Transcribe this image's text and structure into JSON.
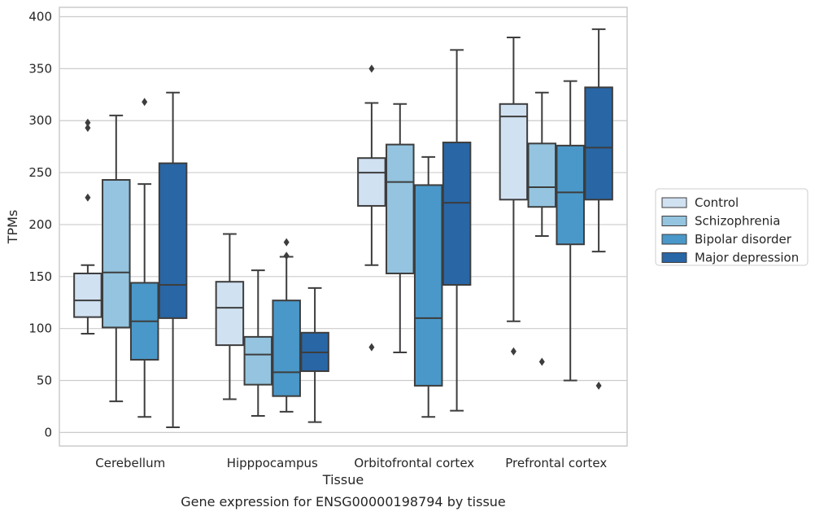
{
  "chart_data": {
    "type": "box",
    "title": "",
    "caption": "Gene expression for ENSG00000198794 by tissue",
    "xlabel": "Tissue",
    "ylabel": "TPMs",
    "ylim": [
      -13,
      409
    ],
    "yticks": [
      0,
      50,
      100,
      150,
      200,
      250,
      300,
      350,
      400
    ],
    "grid": "horizontal",
    "legend_position": "right",
    "categories": [
      "Cerebellum",
      "Hipppocampus",
      "Orbitofrontal cortex",
      "Prefrontal cortex"
    ],
    "series": [
      {
        "name": "Control",
        "color": "#d0e1f2",
        "boxes": [
          {
            "whislo": 95,
            "q1": 111,
            "med": 127,
            "q3": 153,
            "whishi": 161,
            "fliers": [
              226,
              293,
              298
            ]
          },
          {
            "whislo": 32,
            "q1": 84,
            "med": 120,
            "q3": 145,
            "whishi": 191,
            "fliers": []
          },
          {
            "whislo": 161,
            "q1": 218,
            "med": 250,
            "q3": 264,
            "whishi": 317,
            "fliers": [
              82,
              350
            ]
          },
          {
            "whislo": 107,
            "q1": 224,
            "med": 304,
            "q3": 316,
            "whishi": 380,
            "fliers": [
              78
            ]
          }
        ]
      },
      {
        "name": "Schizophrenia",
        "color": "#94c4df",
        "boxes": [
          {
            "whislo": 30,
            "q1": 101,
            "med": 154,
            "q3": 243,
            "whishi": 305,
            "fliers": []
          },
          {
            "whislo": 16,
            "q1": 46,
            "med": 75,
            "q3": 92,
            "whishi": 156,
            "fliers": []
          },
          {
            "whislo": 77,
            "q1": 153,
            "med": 241,
            "q3": 277,
            "whishi": 316,
            "fliers": []
          },
          {
            "whislo": 189,
            "q1": 217,
            "med": 236,
            "q3": 278,
            "whishi": 327,
            "fliers": [
              68
            ]
          }
        ]
      },
      {
        "name": "Bipolar disorder",
        "color": "#4a98c9",
        "boxes": [
          {
            "whislo": 15,
            "q1": 70,
            "med": 107,
            "q3": 144,
            "whishi": 239,
            "fliers": [
              318
            ]
          },
          {
            "whislo": 20,
            "q1": 35,
            "med": 58,
            "q3": 127,
            "whishi": 169,
            "fliers": [
              170,
              183
            ]
          },
          {
            "whislo": 15,
            "q1": 45,
            "med": 110,
            "q3": 238,
            "whishi": 265,
            "fliers": []
          },
          {
            "whislo": 50,
            "q1": 181,
            "med": 231,
            "q3": 276,
            "whishi": 338,
            "fliers": []
          }
        ]
      },
      {
        "name": "Major depression",
        "color": "#2866a6",
        "boxes": [
          {
            "whislo": 5,
            "q1": 110,
            "med": 142,
            "q3": 259,
            "whishi": 327,
            "fliers": []
          },
          {
            "whislo": 10,
            "q1": 59,
            "med": 77,
            "q3": 96,
            "whishi": 139,
            "fliers": []
          },
          {
            "whislo": 21,
            "q1": 142,
            "med": 221,
            "q3": 279,
            "whishi": 368,
            "fliers": []
          },
          {
            "whislo": 174,
            "q1": 224,
            "med": 274,
            "q3": 332,
            "whishi": 388,
            "fliers": [
              45
            ]
          }
        ]
      }
    ]
  }
}
